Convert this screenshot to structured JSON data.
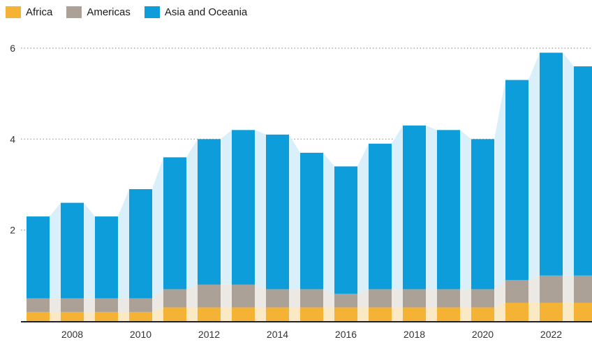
{
  "chart_data": {
    "type": "bar",
    "stacked": true,
    "x": [
      2007,
      2008,
      2009,
      2010,
      2011,
      2012,
      2013,
      2014,
      2015,
      2016,
      2017,
      2018,
      2019,
      2020,
      2021,
      2022,
      2023
    ],
    "x_tick_labels": [
      "2008",
      "2010",
      "2012",
      "2014",
      "2016",
      "2018",
      "2020",
      "2022"
    ],
    "y_ticks": [
      "2",
      "4",
      "6"
    ],
    "ylim": [
      0,
      6.6
    ],
    "grid": "horizontal-dotted",
    "legend": "top-left",
    "series": [
      {
        "name": "Africa",
        "color": "#f5b335",
        "values": [
          0.2,
          0.2,
          0.2,
          0.2,
          0.3,
          0.3,
          0.3,
          0.3,
          0.3,
          0.3,
          0.3,
          0.3,
          0.3,
          0.3,
          0.4,
          0.4,
          0.4
        ]
      },
      {
        "name": "Americas",
        "color": "#aca197",
        "values": [
          0.3,
          0.3,
          0.3,
          0.3,
          0.4,
          0.5,
          0.5,
          0.4,
          0.4,
          0.3,
          0.4,
          0.4,
          0.4,
          0.4,
          0.5,
          0.6,
          0.6
        ]
      },
      {
        "name": "Asia and Oceania",
        "color": "#0d9ddb",
        "values": [
          1.8,
          2.1,
          1.8,
          2.4,
          2.9,
          3.2,
          3.4,
          3.4,
          3.0,
          2.8,
          3.2,
          3.6,
          3.5,
          3.3,
          4.4,
          4.9,
          4.6
        ]
      }
    ],
    "connector_colors": {
      "Africa": "#fbe9c4",
      "Americas": "#ece8e4",
      "Asia and Oceania": "#d9f0fa"
    }
  }
}
